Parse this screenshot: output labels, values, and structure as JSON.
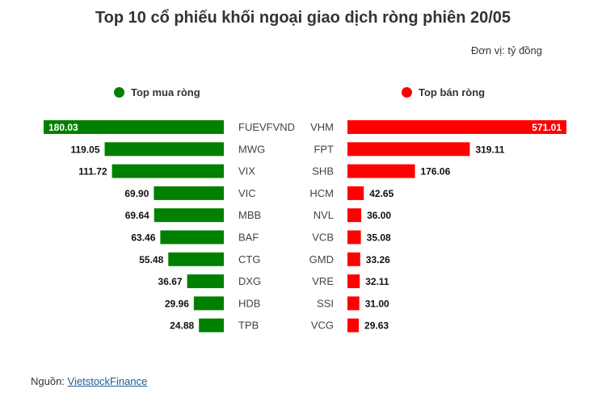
{
  "title": "Top 10 cổ phiếu khối ngoại giao dịch ròng phiên 20/05",
  "unit": "Đơn vị: tỷ đồng",
  "colors": {
    "buy": "#008000",
    "sell": "#ff0000"
  },
  "source": {
    "label": "Nguồn: ",
    "link_text": "VietstockFinance"
  },
  "chart_data": [
    {
      "type": "bar",
      "series_name": "Top mua ròng",
      "categories": [
        "FUEVFVND",
        "MWG",
        "VIX",
        "VIC",
        "MBB",
        "BAF",
        "CTG",
        "DXG",
        "HDB",
        "TPB"
      ],
      "values": [
        180.03,
        119.05,
        111.72,
        69.9,
        69.64,
        63.46,
        55.48,
        36.67,
        29.96,
        24.88
      ],
      "labels": [
        "180.03",
        "119.05",
        "111.72",
        "69.90",
        "69.64",
        "63.46",
        "55.48",
        "36.67",
        "29.96",
        "24.88"
      ],
      "orientation": "horizontal",
      "direction": "leftward",
      "color": "#008000"
    },
    {
      "type": "bar",
      "series_name": "Top bán ròng",
      "categories": [
        "VHM",
        "FPT",
        "SHB",
        "HCM",
        "NVL",
        "VCB",
        "GMD",
        "VRE",
        "SSI",
        "VCG"
      ],
      "values": [
        571.01,
        319.11,
        176.06,
        42.65,
        36.0,
        35.08,
        33.26,
        32.11,
        31.0,
        29.63
      ],
      "labels": [
        "571.01",
        "319.11",
        "176.06",
        "42.65",
        "36.00",
        "35.08",
        "33.26",
        "32.11",
        "31.00",
        "29.63"
      ],
      "orientation": "horizontal",
      "direction": "rightward",
      "color": "#ff0000"
    }
  ]
}
